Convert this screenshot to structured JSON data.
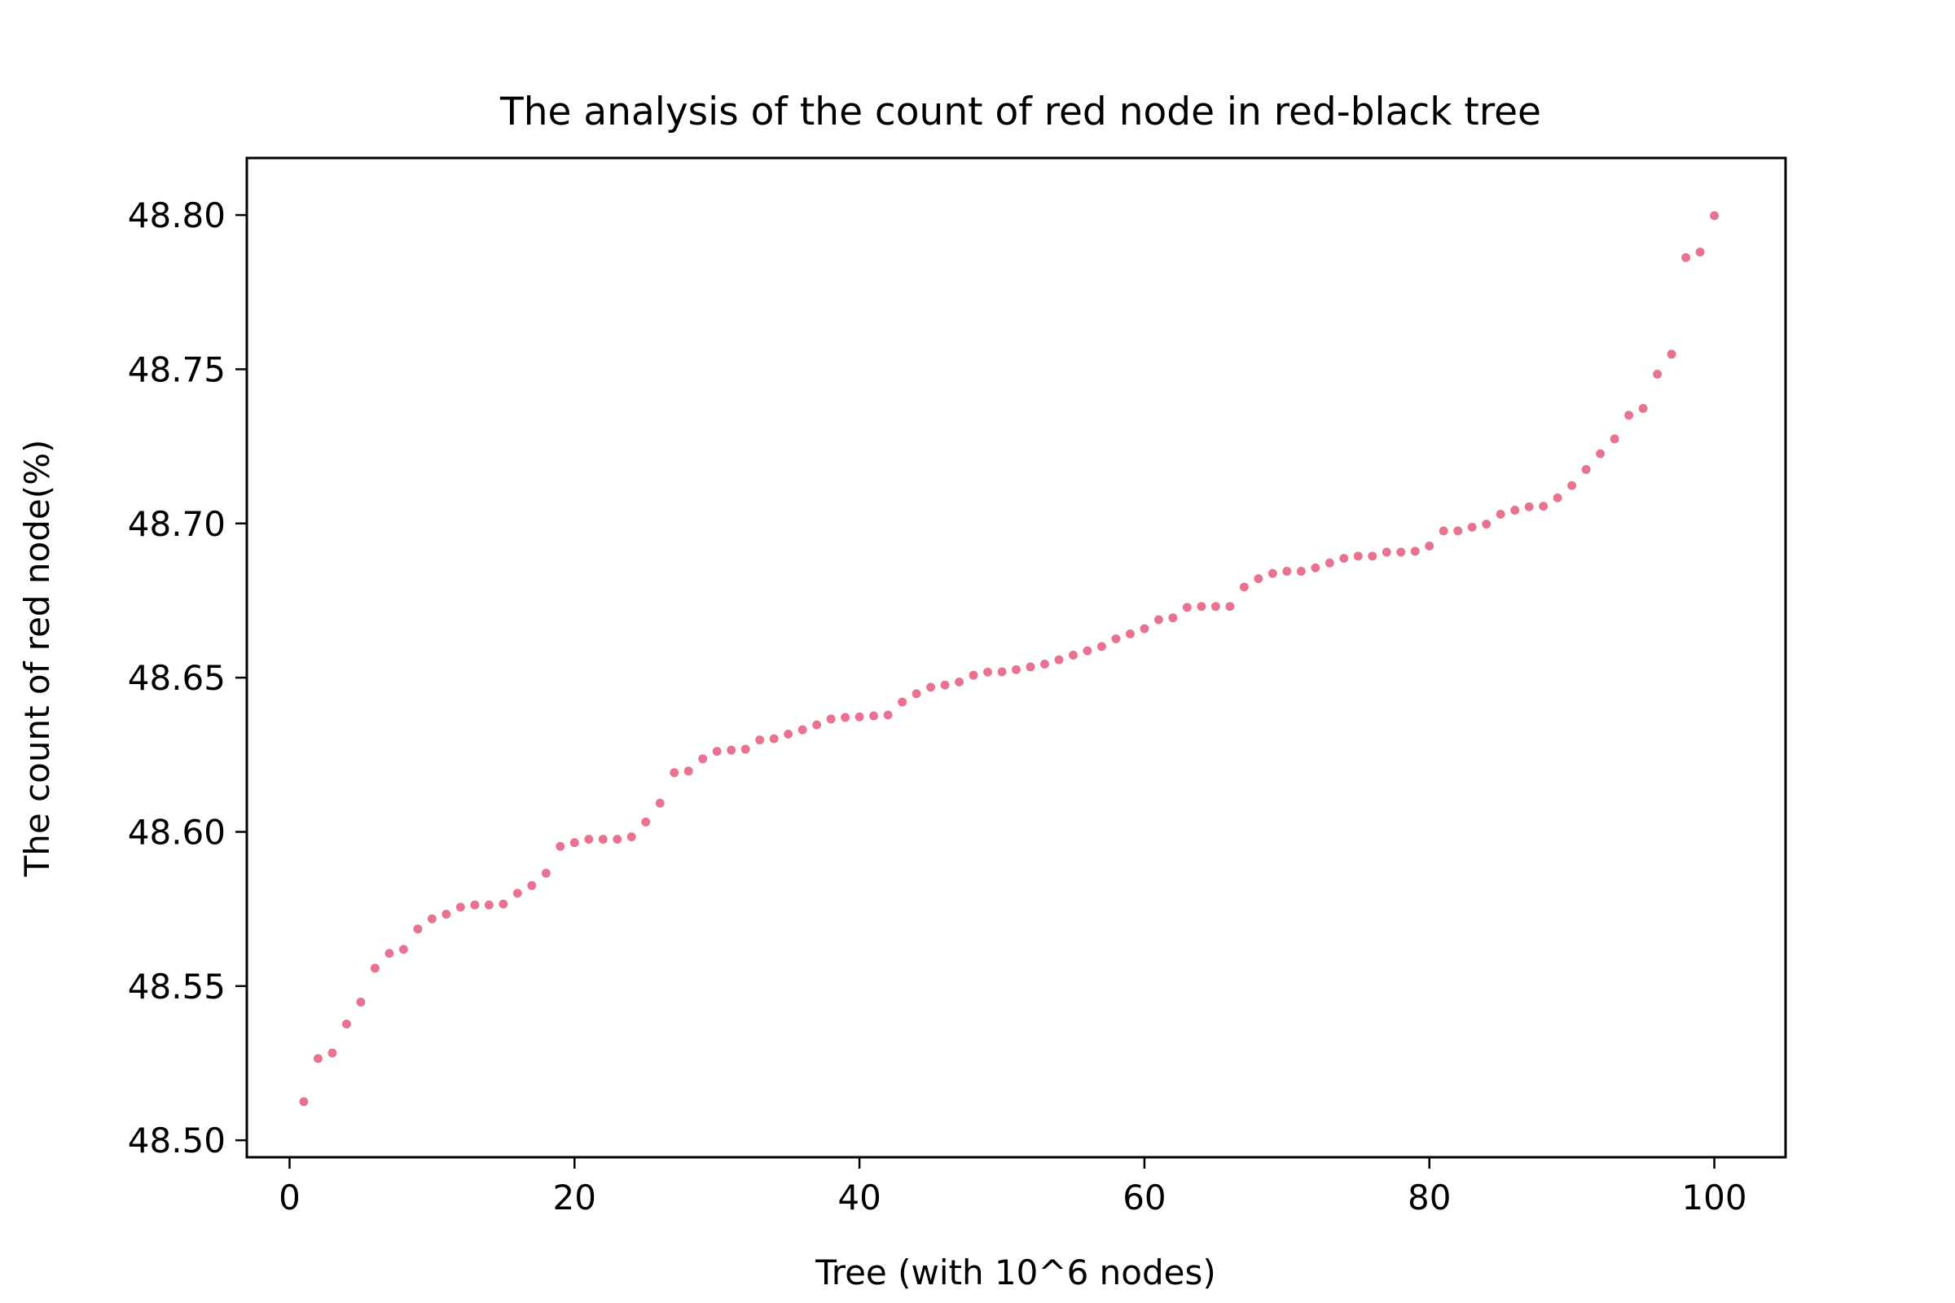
{
  "chart_data": {
    "type": "scatter",
    "title": "The analysis of the count of red node in red-black tree",
    "xlabel": "Tree (with 10^6 nodes)",
    "ylabel": "The count of red node(%)",
    "xlim": [
      -3,
      105
    ],
    "ylim": [
      48.4945,
      48.8185
    ],
    "xticks": [
      0,
      20,
      40,
      60,
      80,
      100
    ],
    "xtick_labels": [
      "0",
      "20",
      "40",
      "60",
      "80",
      "100"
    ],
    "yticks": [
      48.5,
      48.55,
      48.6,
      48.65,
      48.7,
      48.75,
      48.8
    ],
    "ytick_labels": [
      "48.50",
      "48.55",
      "48.60",
      "48.65",
      "48.70",
      "48.75",
      "48.80"
    ],
    "grid": false,
    "marker_color": "#e8728f",
    "series": [
      {
        "name": "",
        "x": [
          1,
          2,
          3,
          4,
          5,
          6,
          7,
          8,
          9,
          10,
          11,
          12,
          13,
          14,
          15,
          16,
          17,
          18,
          19,
          20,
          21,
          22,
          23,
          24,
          25,
          26,
          27,
          28,
          29,
          30,
          31,
          32,
          33,
          34,
          35,
          36,
          37,
          38,
          39,
          40,
          41,
          42,
          43,
          44,
          45,
          46,
          47,
          48,
          49,
          50,
          51,
          52,
          53,
          54,
          55,
          56,
          57,
          58,
          59,
          60,
          61,
          62,
          63,
          64,
          65,
          66,
          67,
          68,
          69,
          70,
          71,
          72,
          73,
          74,
          75,
          76,
          77,
          78,
          79,
          80,
          81,
          82,
          83,
          84,
          85,
          86,
          87,
          88,
          89,
          90,
          91,
          92,
          93,
          94,
          95,
          96,
          97,
          98,
          99,
          100
        ],
        "y": [
          48.5125,
          48.5265,
          48.5283,
          48.5377,
          48.5448,
          48.5558,
          48.5606,
          48.5619,
          48.5685,
          48.5718,
          48.5733,
          48.5756,
          48.5763,
          48.5763,
          48.5766,
          48.5801,
          48.5826,
          48.5866,
          48.5953,
          48.5965,
          48.5976,
          48.5976,
          48.5976,
          48.5984,
          48.6032,
          48.6093,
          48.6192,
          48.6197,
          48.6237,
          48.6261,
          48.6265,
          48.6268,
          48.6298,
          48.6302,
          48.6317,
          48.6331,
          48.6347,
          48.6366,
          48.6371,
          48.6373,
          48.6376,
          48.6379,
          48.6421,
          48.6448,
          48.6469,
          48.6476,
          48.6486,
          48.6508,
          48.6518,
          48.6519,
          48.6526,
          48.6535,
          48.6544,
          48.6558,
          48.6573,
          48.6587,
          48.6601,
          48.6626,
          48.6642,
          48.6659,
          48.6688,
          48.6694,
          48.6728,
          48.6731,
          48.6731,
          48.6731,
          48.6794,
          48.6821,
          48.6838,
          48.6845,
          48.6845,
          48.6856,
          48.6872,
          48.6887,
          48.6894,
          48.6894,
          48.6907,
          48.6907,
          48.691,
          48.6927,
          48.6976,
          48.6976,
          48.6988,
          48.6998,
          48.703,
          48.7043,
          48.7054,
          48.7056,
          48.7083,
          48.7123,
          48.7175,
          48.7226,
          48.7274,
          48.7351,
          48.7373,
          48.7484,
          48.7549,
          48.7862,
          48.788,
          48.7998
        ]
      }
    ]
  }
}
